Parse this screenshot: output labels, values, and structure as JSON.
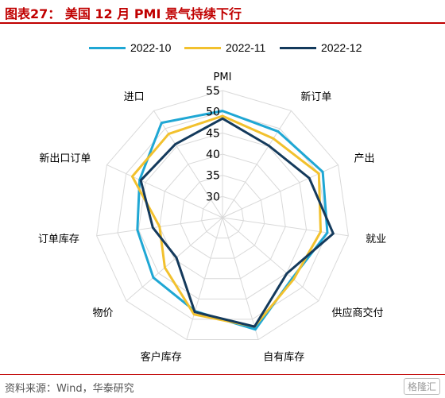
{
  "header": {
    "title": "图表27： 美国 12 月 PMI 景气持续下行"
  },
  "footer": {
    "source": "资料来源：Wind，华泰研究",
    "watermark": "格隆汇"
  },
  "chart_data": {
    "type": "radar",
    "title": "图表27： 美国 12 月 PMI 景气持续下行",
    "radial_label": "PMI",
    "rlim": [
      25,
      55
    ],
    "ticks": [
      30,
      35,
      40,
      45,
      50,
      55
    ],
    "grid": true,
    "legend_position": "top",
    "axes": [
      "PMI",
      "新订单",
      "产出",
      "就业",
      "供应商交付",
      "自有库存",
      "客户库存",
      "物价",
      "订单库存",
      "新出口订单",
      "进口"
    ],
    "series": [
      {
        "name": "2022-10",
        "color": "#1fa7d4",
        "values": [
          50.2,
          49.2,
          51.0,
          50.0,
          46.8,
          52.5,
          48.0,
          46.6,
          45.3,
          46.5,
          51.6
        ]
      },
      {
        "name": "2022-11",
        "color": "#f2c12e",
        "values": [
          49.0,
          47.2,
          50.0,
          48.4,
          47.2,
          51.8,
          48.8,
          43.0,
          40.0,
          48.4,
          48.5
        ]
      },
      {
        "name": "2022-12",
        "color": "#143a5c",
        "values": [
          48.4,
          45.2,
          47.5,
          51.4,
          45.1,
          51.8,
          48.2,
          39.4,
          41.6,
          46.2,
          45.6
        ]
      }
    ]
  }
}
